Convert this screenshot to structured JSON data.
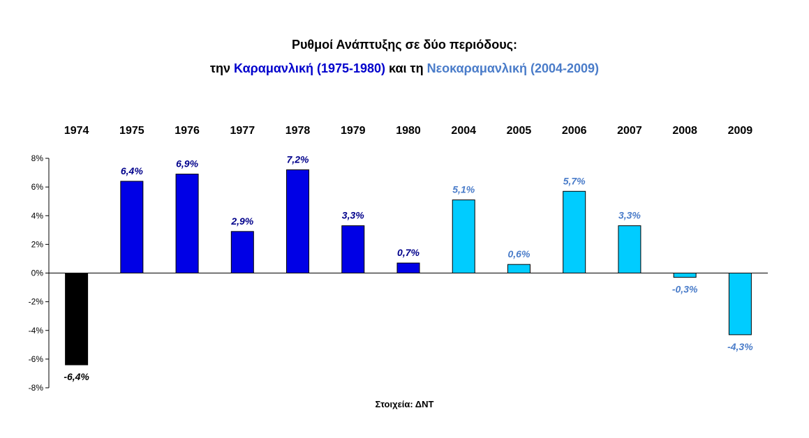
{
  "title": {
    "line1": "Ρυθμοί Ανάπτυξης σε δύο περιόδους:",
    "line2_part1": "την ",
    "line2_part2": "Καραμανλική (1975-1980)",
    "line2_part3": " και τη ",
    "line2_part4": "Νεοκαραμανλική (2004-2009)"
  },
  "source": "Στοιχεία: ΔΝΤ",
  "colors": {
    "period1974": "#000000",
    "karamanlis": "#0000e6",
    "neokaramanlis": "#00ccff",
    "label_karamanlis": "#00008b",
    "label_neokaramanlis": "#4a7cc9",
    "title_karamanlis": "#0000cc",
    "title_neokaramanlis": "#4a7cc9"
  },
  "chart_data": {
    "type": "bar",
    "categories": [
      "1974",
      "1975",
      "1976",
      "1977",
      "1978",
      "1979",
      "1980",
      "2004",
      "2005",
      "2006",
      "2007",
      "2008",
      "2009"
    ],
    "values": [
      -6.4,
      6.4,
      6.9,
      2.9,
      7.2,
      3.3,
      0.7,
      5.1,
      0.6,
      5.7,
      3.3,
      -0.3,
      -4.3
    ],
    "data_labels": [
      "-6,4%",
      "6,4%",
      "6,9%",
      "2,9%",
      "7,2%",
      "3,3%",
      "0,7%",
      "5,1%",
      "0,6%",
      "5,7%",
      "3,3%",
      "-0,3%",
      "-4,3%"
    ],
    "groups": [
      "period1974",
      "karamanlis",
      "karamanlis",
      "karamanlis",
      "karamanlis",
      "karamanlis",
      "karamanlis",
      "neokaramanlis",
      "neokaramanlis",
      "neokaramanlis",
      "neokaramanlis",
      "neokaramanlis",
      "neokaramanlis"
    ],
    "y_ticks": [
      8,
      6,
      4,
      2,
      0,
      -2,
      -4,
      -6,
      -8
    ],
    "y_tick_labels": [
      "8%",
      "6%",
      "4%",
      "2%",
      "0%",
      "-2%",
      "-4%",
      "-6%",
      "-8%"
    ],
    "ylim": [
      -8,
      8
    ],
    "grid": false,
    "legend": "none"
  }
}
